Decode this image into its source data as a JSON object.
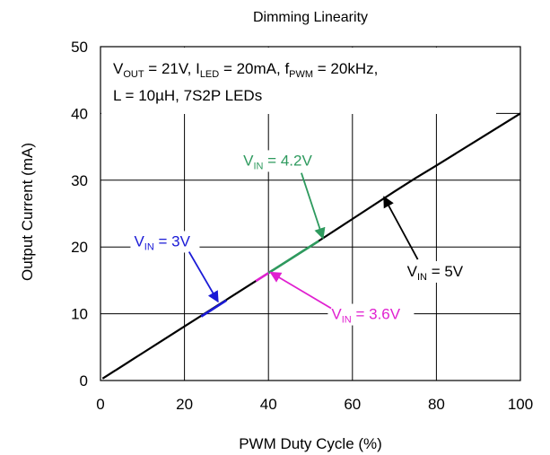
{
  "chart_data": {
    "type": "line",
    "title": "Dimming Linearity",
    "xlabel": "PWM Duty Cycle (%)",
    "ylabel": "Output Current (mA)",
    "xlim": [
      0,
      100
    ],
    "ylim": [
      0,
      50
    ],
    "x_ticks": [
      "0",
      "20",
      "40",
      "60",
      "80",
      "100"
    ],
    "y_ticks": [
      "0",
      "10",
      "20",
      "30",
      "40",
      "50"
    ],
    "grid": true,
    "conditions": {
      "line1": {
        "v": "V",
        "out_sub": "OUT",
        "v_out": " = 21V,  I",
        "led_sub": "LED",
        "i_led": " = 20mA, f",
        "pwm_sub": "PWM",
        "f_pwm": " = 20kHz,"
      },
      "line2": "L = 10µH, 7S2P LEDs"
    },
    "series": [
      {
        "name": "VIN = 5V",
        "color": "#000000",
        "x": [
          0.5,
          2,
          4,
          6,
          8,
          10,
          20,
          30,
          40,
          50,
          60,
          70,
          75,
          80,
          90,
          100
        ],
        "y": [
          0.3,
          0.9,
          1.7,
          2.5,
          3.3,
          4.1,
          8.1,
          12.1,
          16.1,
          20.1,
          24.2,
          28.3,
          30.3,
          32.2,
          36.1,
          40.0
        ]
      },
      {
        "name": "VIN = 3V",
        "color": "#1a1ad6",
        "x": [
          24,
          26,
          28,
          30
        ],
        "y": [
          9.6,
          10.4,
          11.2,
          12.0
        ]
      },
      {
        "name": "VIN = 3.6V",
        "color": "#e020d0",
        "x": [
          37,
          38,
          39,
          40,
          41
        ],
        "y": [
          14.9,
          15.3,
          15.7,
          16.1,
          16.5
        ]
      },
      {
        "name": "VIN = 4.2V",
        "color": "#2e9a5e",
        "x": [
          40,
          44,
          48,
          52
        ],
        "y": [
          16.1,
          17.7,
          19.3,
          20.9
        ]
      }
    ],
    "annotations": [
      {
        "id": "vin5",
        "prefix": "V",
        "sub": "IN",
        "suffix": " = 5V",
        "color": "#000000",
        "target": [
          67.5,
          27.5
        ],
        "text_at": [
          73,
          15.6
        ]
      },
      {
        "id": "vin42",
        "prefix": "V",
        "sub": "IN",
        "suffix": " = 4.2V",
        "color": "#2e9a5e",
        "target": [
          53,
          21.3
        ],
        "text_at": [
          34,
          32.2
        ]
      },
      {
        "id": "vin3",
        "prefix": "V",
        "sub": "IN",
        "suffix": " = 3V",
        "color": "#1a1ad6",
        "target": [
          28,
          11.8
        ],
        "text_at": [
          8,
          20.1
        ]
      },
      {
        "id": "vin36",
        "prefix": "V",
        "sub": "IN",
        "suffix": " = 3.6V",
        "color": "#e020d0",
        "target": [
          40.5,
          16.2
        ],
        "text_at": [
          55,
          9.2
        ]
      }
    ]
  }
}
